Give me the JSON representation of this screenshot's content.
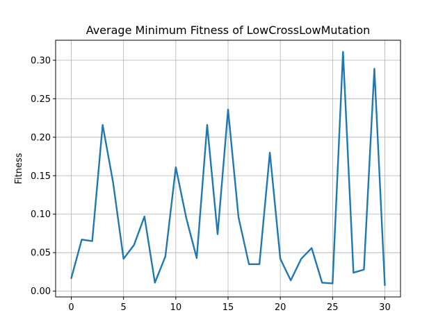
{
  "chart_data": {
    "type": "line",
    "title": "Average Minimum Fitness of LowCrossLowMutation",
    "xlabel": "",
    "ylabel": "Fitness",
    "xlim": [
      -1.5,
      31.5
    ],
    "ylim": [
      -0.0075,
      0.326
    ],
    "xticks": [
      0,
      5,
      10,
      15,
      20,
      25,
      30
    ],
    "xtick_labels": [
      "0",
      "5",
      "10",
      "15",
      "20",
      "25",
      "30"
    ],
    "yticks": [
      0.0,
      0.05,
      0.1,
      0.15,
      0.2,
      0.25,
      0.3
    ],
    "ytick_labels": [
      "0.00",
      "0.05",
      "0.10",
      "0.15",
      "0.20",
      "0.25",
      "0.30"
    ],
    "grid": true,
    "line_color": "#1f77b4",
    "series": [
      {
        "x": [
          0,
          1,
          2,
          3,
          4,
          5,
          6,
          7,
          8,
          9,
          10,
          11,
          12,
          13,
          14,
          15,
          16,
          17,
          18,
          19,
          20,
          21,
          22,
          23,
          24,
          25,
          26,
          27,
          28,
          29,
          30
        ],
        "values": [
          0.017,
          0.067,
          0.065,
          0.216,
          0.141,
          0.042,
          0.06,
          0.097,
          0.011,
          0.045,
          0.161,
          0.095,
          0.043,
          0.216,
          0.074,
          0.236,
          0.096,
          0.035,
          0.035,
          0.18,
          0.042,
          0.014,
          0.042,
          0.056,
          0.011,
          0.01,
          0.311,
          0.024,
          0.028,
          0.289,
          0.008
        ]
      }
    ]
  }
}
